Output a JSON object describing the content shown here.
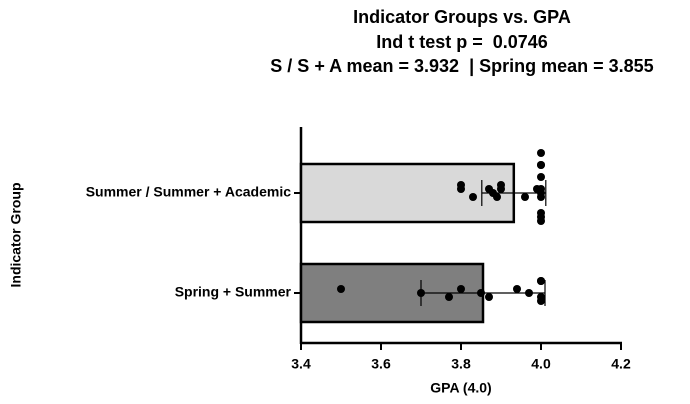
{
  "chart_data": {
    "type": "bar",
    "title": "Indicator Groups vs. GPA",
    "subtitle": [
      "Ind t test p =  0.0746",
      "S / S + A mean = 3.932  | Spring mean = 3.855"
    ],
    "x_label": "GPA (4.0)",
    "y_label": "Indicator Group",
    "orientation": "horizontal",
    "categories": [
      "Summer / Summer + Academic",
      "Spring + Summer"
    ],
    "values": [
      3.932,
      3.855
    ],
    "errors": [
      0.08,
      0.155
    ],
    "colors": [
      "#d9d9d9",
      "#7f7f7f"
    ],
    "points": [
      [
        3.8,
        3.8,
        3.83,
        3.87,
        3.88,
        3.89,
        3.9,
        3.9,
        3.96,
        3.99,
        4.0,
        4.0,
        4.0,
        4.0,
        4.0,
        4.0,
        4.0,
        4.0,
        4.0,
        4.0
      ],
      [
        3.5,
        3.7,
        3.77,
        3.8,
        3.85,
        3.87,
        3.94,
        3.97,
        4.0,
        4.0,
        4.0,
        4.0
      ]
    ],
    "point_color": "#000000",
    "xlim": [
      3.4,
      4.2
    ],
    "xticks": [
      3.4,
      3.6,
      3.8,
      {
        "value": 4,
        "label": "4.0"
      },
      4.2
    ]
  }
}
